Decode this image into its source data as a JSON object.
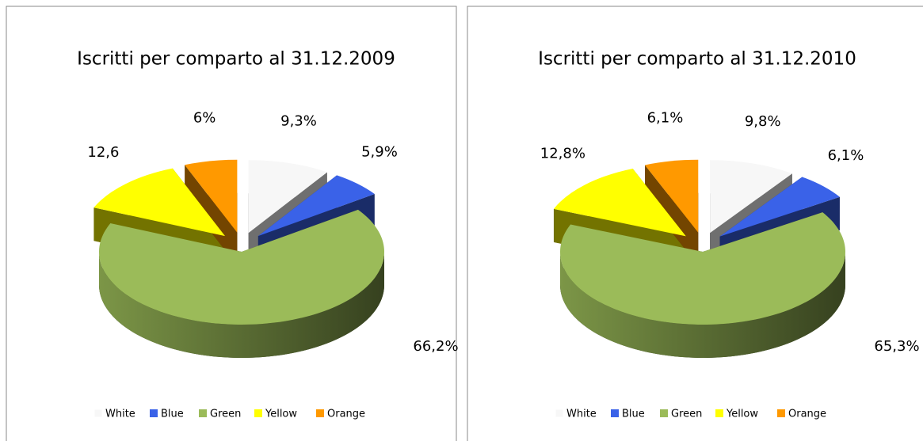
{
  "chart_data": [
    {
      "type": "pie",
      "title": "Iscritti per comparto al 31.12.2009",
      "categories": [
        "White",
        "Blue",
        "Green",
        "Yellow",
        "Orange"
      ],
      "values": [
        9.3,
        5.9,
        66.2,
        12.6,
        6
      ],
      "value_labels": [
        "9,3%",
        "5,9%",
        "66,2%",
        "12,6",
        "6%"
      ],
      "colors": [
        "#f7f7f7",
        "#3a62e8",
        "#9bbb59",
        "#ffff00",
        "#ff9900"
      ]
    },
    {
      "type": "pie",
      "title": "Iscritti per comparto al 31.12.2010",
      "categories": [
        "White",
        "Blue",
        "Green",
        "Yellow",
        "Orange"
      ],
      "values": [
        9.8,
        6.1,
        65.3,
        12.8,
        6.1
      ],
      "value_labels": [
        "9,8%",
        "6,1%",
        "65,3%",
        "12,8%",
        "6,1%"
      ],
      "colors": [
        "#f7f7f7",
        "#3a62e8",
        "#9bbb59",
        "#ffff00",
        "#ff9900"
      ]
    }
  ]
}
